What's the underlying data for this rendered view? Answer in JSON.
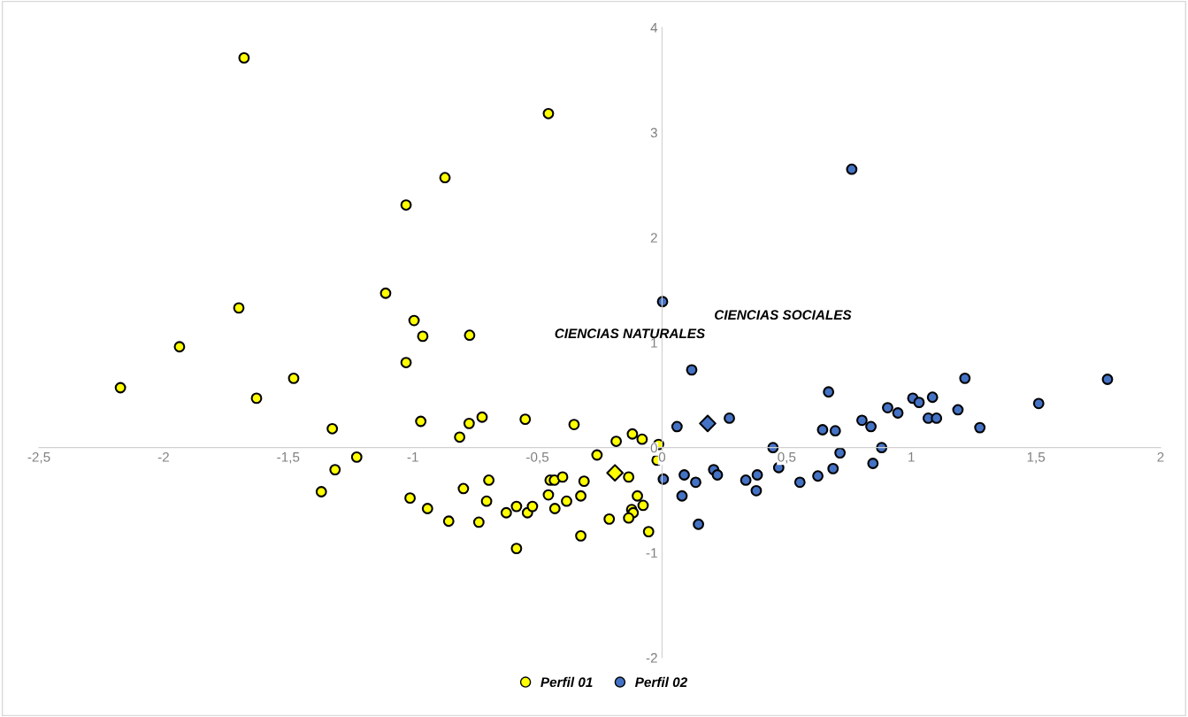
{
  "chart_data": {
    "type": "scatter",
    "marker": "circle",
    "legend": "bottom",
    "grid": false,
    "xlim": [
      -2.5,
      2
    ],
    "ylim": [
      -2,
      4
    ],
    "xticks": [
      {
        "value": -2.5,
        "label": "-2,5"
      },
      -2,
      {
        "value": -1.5,
        "label": "-1,5"
      },
      -1,
      {
        "value": -0.5,
        "label": "-0,5"
      },
      0,
      {
        "value": 0.5,
        "label": "0,5"
      },
      1,
      {
        "value": 1.5,
        "label": "1,5"
      },
      2
    ],
    "yticks": [
      -2,
      -1,
      0,
      1,
      2,
      3,
      4
    ],
    "annotations": [
      "CIENCIAS NATURALES",
      "CIENCIAS SOCIALES"
    ],
    "series": [
      {
        "name": "Perfil 01",
        "color": "#ffff00",
        "x": [
          -1.677,
          -0.456,
          -0.871,
          -1.027,
          -1.109,
          -1.698,
          -0.995,
          -0.96,
          -0.772,
          -1.936,
          -1.027,
          -1.478,
          -2.173,
          -1.627,
          -1.323,
          -0.968,
          -0.812,
          -0.774,
          -0.722,
          -0.549,
          -0.353,
          -0.184,
          -0.119,
          -0.08,
          -0.014,
          -0.261,
          -0.02,
          -1.225,
          -1.312,
          -1.367,
          -1.011,
          -0.941,
          -0.856,
          -0.797,
          -0.695,
          -0.704,
          -0.735,
          -0.625,
          -0.584,
          -0.54,
          -0.52,
          -0.584,
          -0.449,
          -0.432,
          -0.399,
          -0.456,
          -0.43,
          -0.383,
          -0.313,
          -0.326,
          -0.326,
          -0.212,
          -0.134,
          -0.099,
          -0.076,
          -0.122,
          -0.116,
          -0.134,
          -0.054
        ],
        "values": [
          3.71,
          3.18,
          2.57,
          2.31,
          1.47,
          1.33,
          1.21,
          1.06,
          1.07,
          0.96,
          0.81,
          0.66,
          0.57,
          0.47,
          0.18,
          0.25,
          0.1,
          0.23,
          0.29,
          0.27,
          0.22,
          0.06,
          0.13,
          0.08,
          0.03,
          -0.07,
          -0.12,
          -0.09,
          -0.21,
          -0.42,
          -0.48,
          -0.58,
          -0.7,
          -0.39,
          -0.31,
          -0.51,
          -0.71,
          -0.62,
          -0.56,
          -0.62,
          -0.56,
          -0.96,
          -0.31,
          -0.31,
          -0.28,
          -0.45,
          -0.58,
          -0.51,
          -0.32,
          -0.46,
          -0.84,
          -0.68,
          -0.28,
          -0.46,
          -0.55,
          -0.59,
          -0.62,
          -0.67,
          -0.8
        ]
      },
      {
        "name": "Perfil 02",
        "color": "#4472c4",
        "x": [
          0.761,
          0.002,
          0.119,
          0.06,
          0.27,
          0.668,
          1.215,
          1.787,
          1.511,
          1.006,
          1.031,
          1.085,
          0.905,
          0.946,
          1.187,
          1.068,
          1.101,
          1.275,
          0.802,
          0.838,
          0.644,
          0.695,
          0.445,
          0.881,
          0.714,
          0.846,
          0.686,
          0.625,
          0.553,
          0.468,
          0.382,
          0.378,
          0.336,
          0.207,
          0.222,
          0.089,
          0.135,
          0.005,
          0.08,
          0.146
        ],
        "values": [
          2.65,
          1.39,
          0.74,
          0.2,
          0.28,
          0.53,
          0.66,
          0.65,
          0.42,
          0.47,
          0.43,
          0.48,
          0.38,
          0.33,
          0.36,
          0.28,
          0.28,
          0.19,
          0.26,
          0.2,
          0.17,
          0.16,
          0,
          0,
          -0.05,
          -0.15,
          -0.2,
          -0.27,
          -0.33,
          -0.19,
          -0.26,
          -0.41,
          -0.31,
          -0.21,
          -0.26,
          -0.26,
          -0.33,
          -0.3,
          -0.46,
          -0.73
        ]
      },
      {
        "color": "#ffff00",
        "marker": "diamond",
        "x": [
          -0.189
        ],
        "values": [
          -0.24
        ]
      },
      {
        "color": "#4472c4",
        "marker": "diamond",
        "x": [
          0.183
        ],
        "values": [
          0.23
        ]
      }
    ]
  }
}
